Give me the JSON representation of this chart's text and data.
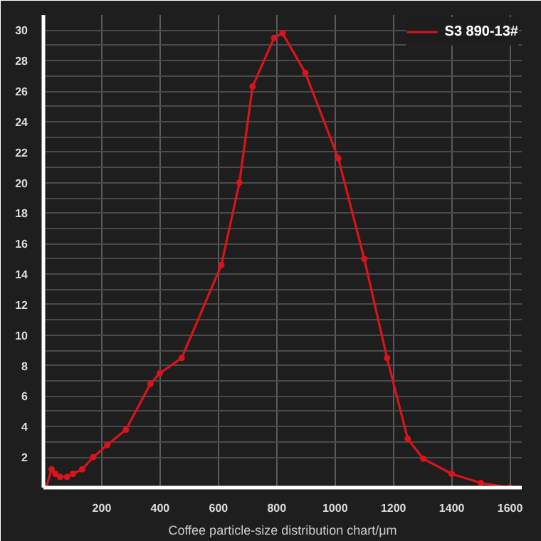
{
  "chart_data": {
    "type": "line",
    "xlabel": "Coffee particle-size distribution chart/μm",
    "x": [
      9,
      28,
      41,
      57,
      81,
      101,
      133,
      171,
      219,
      283,
      367,
      399,
      474,
      610,
      672,
      717,
      791,
      820,
      898,
      1011,
      1100,
      1178,
      1249,
      1302,
      1400,
      1500,
      1600
    ],
    "series": [
      {
        "name": "S3 890-13#",
        "color": "#d9141b",
        "values": [
          0,
          1.2,
          0.9,
          0.7,
          0.7,
          0.9,
          1.2,
          2,
          2.8,
          3.8,
          6.8,
          7.5,
          8.5,
          14.6,
          20,
          26.3,
          29.5,
          29.8,
          27.2,
          21.6,
          15,
          8.5,
          3.2,
          1.9,
          0.9,
          0.3,
          0
        ]
      }
    ],
    "xlim": [
      0,
      1640
    ],
    "ylim": [
      0,
      31
    ],
    "xticks": [
      200,
      400,
      600,
      800,
      1000,
      1200,
      1400,
      1600
    ],
    "yticks": [
      2,
      4,
      6,
      8,
      10,
      12,
      14,
      16,
      18,
      20,
      22,
      24,
      26,
      28,
      30
    ],
    "grid": true,
    "legend": "top right",
    "marker": "circle",
    "line_style": "solid"
  }
}
